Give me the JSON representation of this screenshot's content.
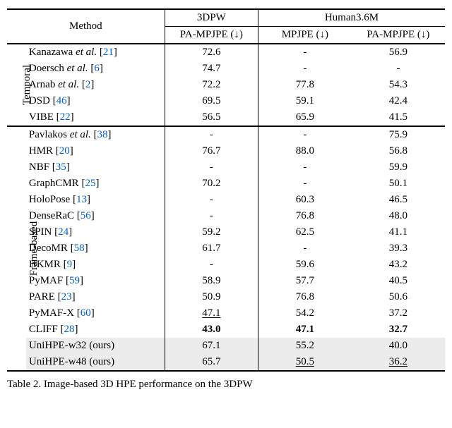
{
  "colors": {
    "text": "#000000",
    "background": "#ffffff",
    "citation": "#0060d0",
    "highlight": "#ececec",
    "rule": "#000000"
  },
  "typography": {
    "font_family": "Times New Roman",
    "base_fontsize_pt": 11
  },
  "header": {
    "method": "Method",
    "dataset1": "3DPW",
    "dataset2": "Human3.6M",
    "metric_pampjpe": "PA-MPJPE (↓)",
    "metric_mpjpe": "MPJPE (↓)"
  },
  "groups": {
    "temporal": "Temporal",
    "frame": "Frame-based"
  },
  "rows": {
    "t0": {
      "name": "Kanazawa ",
      "et": "et al.",
      "cite": "21",
      "a": "72.6",
      "b": "-",
      "c": "56.9"
    },
    "t1": {
      "name": "Doersch ",
      "et": "et al.",
      "cite": "6",
      "a": "74.7",
      "b": "-",
      "c": "-"
    },
    "t2": {
      "name": "Arnab ",
      "et": "et al.",
      "cite": "2",
      "a": "72.2",
      "b": "77.8",
      "c": "54.3"
    },
    "t3": {
      "name": "DSD ",
      "cite": "46",
      "a": "69.5",
      "b": "59.1",
      "c": "42.4"
    },
    "t4": {
      "name": "VIBE ",
      "cite": "22",
      "a": "56.5",
      "b": "65.9",
      "c": "41.5"
    },
    "f0": {
      "name": "Pavlakos ",
      "et": "et al.",
      "cite": "38",
      "a": "-",
      "b": "-",
      "c": "75.9"
    },
    "f1": {
      "name": "HMR ",
      "cite": "20",
      "a": "76.7",
      "b": "88.0",
      "c": "56.8"
    },
    "f2": {
      "name": "NBF ",
      "cite": "35",
      "a": "-",
      "b": "-",
      "c": "59.9"
    },
    "f3": {
      "name": "GraphCMR ",
      "cite": "25",
      "a": "70.2",
      "b": "-",
      "c": "50.1"
    },
    "f4": {
      "name": "HoloPose ",
      "cite": "13",
      "a": "-",
      "b": "60.3",
      "c": "46.5"
    },
    "f5": {
      "name": "DenseRaC ",
      "cite": "56",
      "a": "-",
      "b": "76.8",
      "c": "48.0"
    },
    "f6": {
      "name": "SPIN ",
      "cite": "24",
      "a": "59.2",
      "b": "62.5",
      "c": "41.1"
    },
    "f7": {
      "name": "DecoMR ",
      "cite": "58",
      "a": "61.7",
      "b": "-",
      "c": "39.3"
    },
    "f8": {
      "name": "HKMR ",
      "cite": "9",
      "a": "-",
      "b": "59.6",
      "c": "43.2"
    },
    "f9": {
      "name": "PyMAF ",
      "cite": "59",
      "a": "58.9",
      "b": "57.7",
      "c": "40.5"
    },
    "f10": {
      "name": "PARE ",
      "cite": "23",
      "a": "50.9",
      "b": "76.8",
      "c": "50.6"
    },
    "f11": {
      "name": "PyMAF-X ",
      "cite": "60",
      "a": "47.1",
      "b": "54.2",
      "c": "37.2",
      "ul_a": true
    },
    "f12": {
      "name": "CLIFF ",
      "cite": "28",
      "a": "43.0",
      "b": "47.1",
      "c": "32.7",
      "bold_a": true,
      "bold_b": true,
      "bold_c": true
    },
    "f13": {
      "name": "UniHPE-w32 (ours)",
      "a": "67.1",
      "b": "55.2",
      "c": "40.0",
      "hl": true
    },
    "f14": {
      "name": "UniHPE-w48 (ours)",
      "a": "65.7",
      "b": "50.5",
      "c": "36.2",
      "hl": true,
      "ul_b": true,
      "ul_c": true
    }
  },
  "caption": {
    "label": "Table 2.",
    "text_fragment": "  Image-based 3D HPE performance on the 3DPW"
  }
}
